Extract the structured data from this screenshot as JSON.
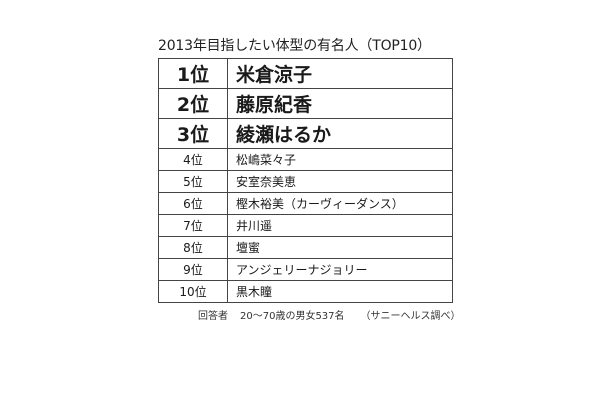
{
  "title": "2013年目指したい体型の有名人（TOP10）",
  "rows": [
    {
      "rank": "1位",
      "name": "米倉涼子"
    },
    {
      "rank": "2位",
      "name": "藤原紀香"
    },
    {
      "rank": "3位",
      "name": "綾瀬はるか"
    },
    {
      "rank": "4位",
      "name": "松嶋菜々子"
    },
    {
      "rank": "5位",
      "name": "安室奈美恵"
    },
    {
      "rank": "6位",
      "name": "樫木裕美（カーヴィーダンス）"
    },
    {
      "rank": "7位",
      "name": "井川遥"
    },
    {
      "rank": "8位",
      "name": "壇蜜"
    },
    {
      "rank": "9位",
      "name": "アンジェリーナジョリー"
    },
    {
      "rank": "10位",
      "name": "黒木瞳"
    }
  ],
  "footnote": {
    "label": "回答者",
    "respondents": "20～70歳の男女537名",
    "source": "（サニーヘルス調べ）"
  }
}
